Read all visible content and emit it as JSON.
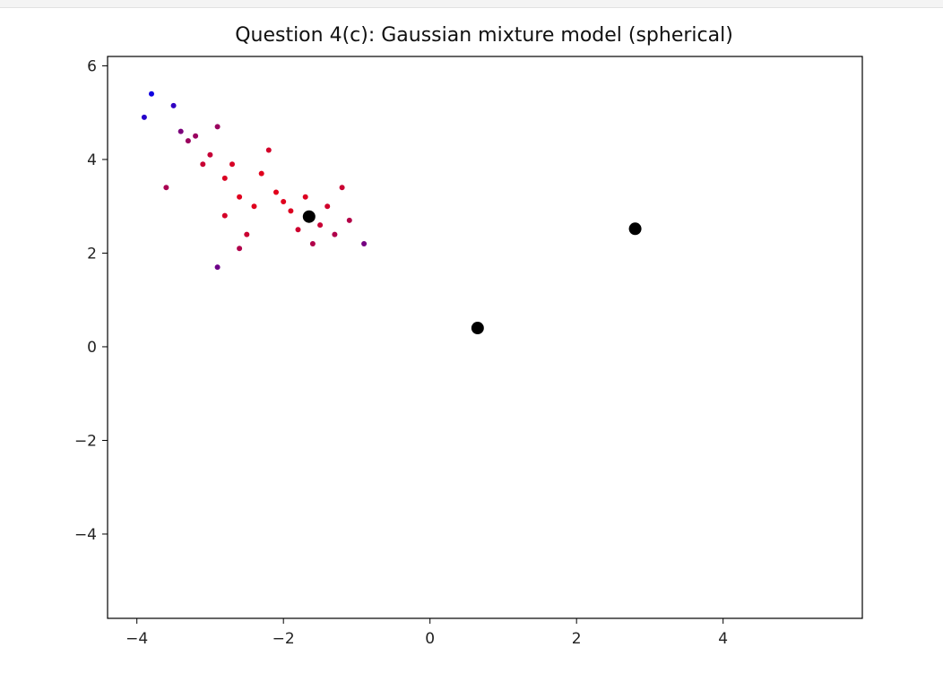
{
  "chart_data": {
    "type": "scatter",
    "title": "Question 4(c): Gaussian mixture model (spherical)",
    "xlabel": "",
    "ylabel": "",
    "xlim": [
      -4.4,
      5.9
    ],
    "ylim": [
      -5.8,
      6.2
    ],
    "xticks": [
      -4,
      -2,
      0,
      2,
      4
    ],
    "yticks": [
      -4,
      -2,
      0,
      2,
      4,
      6
    ],
    "xtick_labels": [
      "−4",
      "−2",
      "0",
      "2",
      "4"
    ],
    "ytick_labels": [
      "−4",
      "−2",
      "0",
      "2",
      "4",
      "6"
    ],
    "grid": false,
    "colors": {
      "red": "#ff0000",
      "green": "#00ee00",
      "blue": "#0000ee",
      "center": "#000000"
    },
    "centers": [
      {
        "x": -1.65,
        "y": 2.78
      },
      {
        "x": 2.8,
        "y": 2.52
      },
      {
        "x": 0.65,
        "y": 0.4
      }
    ],
    "series": [
      {
        "values": [
          [
            -3.9,
            4.9
          ],
          [
            -3.8,
            5.4
          ],
          [
            -3.5,
            5.15
          ],
          [
            -3.4,
            4.6
          ],
          [
            -3.3,
            4.4
          ],
          [
            -3.2,
            4.5
          ],
          [
            -3.0,
            4.1
          ],
          [
            -2.9,
            4.7
          ],
          [
            -3.1,
            3.9
          ],
          [
            -2.8,
            3.6
          ],
          [
            -2.6,
            3.2
          ],
          [
            -2.8,
            2.8
          ],
          [
            -2.5,
            2.4
          ],
          [
            -2.7,
            3.9
          ],
          [
            -2.2,
            4.2
          ],
          [
            -2.3,
            3.7
          ],
          [
            -2.1,
            3.3
          ],
          [
            -2.0,
            3.1
          ],
          [
            -1.9,
            2.9
          ],
          [
            -1.7,
            3.2
          ],
          [
            -1.5,
            2.6
          ],
          [
            -1.4,
            3.0
          ],
          [
            -1.3,
            2.4
          ],
          [
            -1.1,
            2.7
          ],
          [
            -1.6,
            2.2
          ],
          [
            -1.8,
            2.5
          ],
          [
            -2.4,
            3.0
          ],
          [
            -1.2,
            3.4
          ],
          [
            -0.9,
            2.2
          ],
          [
            -3.6,
            3.4
          ],
          [
            -2.9,
            1.7
          ],
          [
            -2.6,
            2.1
          ]
        ]
      }
    ]
  }
}
